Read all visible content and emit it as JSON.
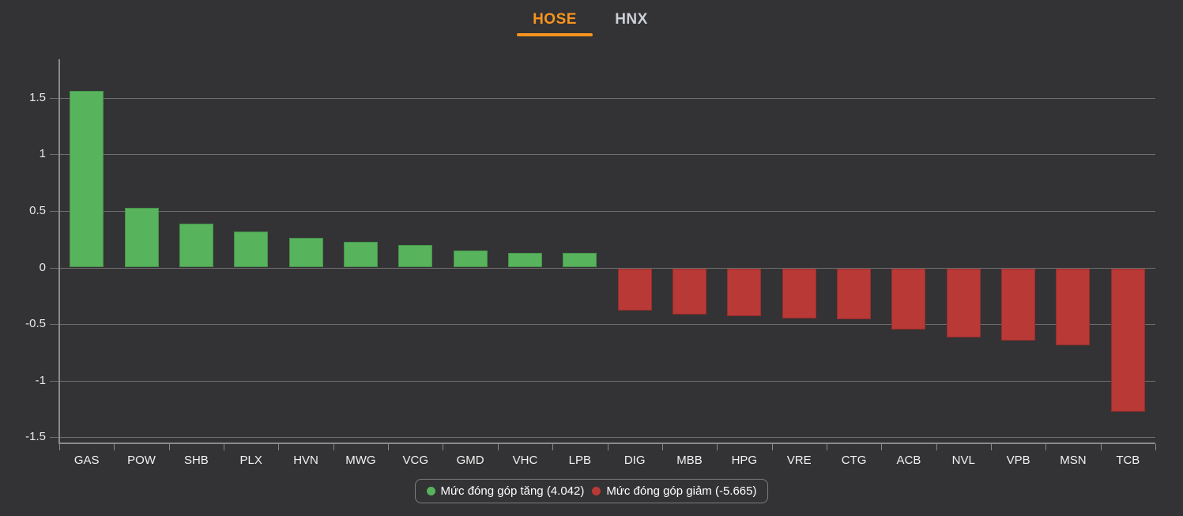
{
  "tabs": [
    {
      "label": "HOSE",
      "active": true
    },
    {
      "label": "HNX",
      "active": false
    }
  ],
  "chart_data": {
    "type": "bar",
    "title": "",
    "xlabel": "",
    "ylabel": "",
    "categories": [
      "GAS",
      "POW",
      "SHB",
      "PLX",
      "HVN",
      "MWG",
      "VCG",
      "GMD",
      "VHC",
      "LPB",
      "DIG",
      "MBB",
      "HPG",
      "VRE",
      "CTG",
      "ACB",
      "NVL",
      "VPB",
      "MSN",
      "TCB"
    ],
    "values": [
      1.56,
      0.53,
      0.39,
      0.32,
      0.26,
      0.23,
      0.2,
      0.15,
      0.13,
      0.13,
      -0.37,
      -0.41,
      -0.42,
      -0.44,
      -0.45,
      -0.54,
      -0.61,
      -0.64,
      -0.68,
      -1.27
    ],
    "yticks": [
      1.5,
      1,
      0.5,
      0,
      -0.5,
      -1,
      -1.5
    ],
    "ylim": [
      -1.55,
      1.84
    ],
    "grid": true,
    "positive_color": "#57b35c",
    "negative_color": "#b93936",
    "legend_position": "bottom",
    "legend": [
      {
        "label": "Mức đóng góp tăng (4.042)",
        "color": "#57b35c"
      },
      {
        "label": "Mức đóng góp giảm (-5.665)",
        "color": "#b93936"
      }
    ]
  },
  "colors": {
    "background": "#333234",
    "accent_orange": "#f7941e",
    "inactive_tab": "#ccd1d8",
    "grid_line": "#6f6f6f",
    "axis_line": "#8a8a8a"
  }
}
